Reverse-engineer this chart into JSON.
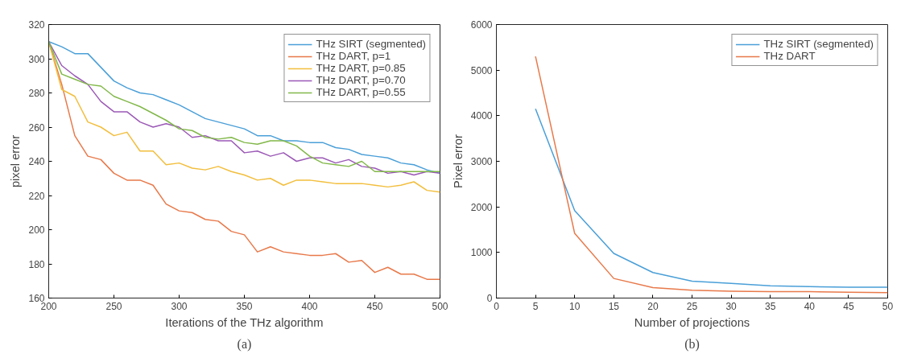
{
  "chart_data": [
    {
      "type": "line",
      "xlabel": "Iterations of the THz algorithm",
      "ylabel": "pixel error",
      "annotations": [
        "(a)"
      ],
      "x": [
        200,
        210,
        220,
        230,
        240,
        250,
        260,
        270,
        280,
        290,
        300,
        310,
        320,
        330,
        340,
        350,
        360,
        370,
        380,
        390,
        400,
        410,
        420,
        430,
        440,
        450,
        460,
        470,
        480,
        490,
        500
      ],
      "series": [
        {
          "name": "THz SIRT (segmented)",
          "color": "#4a9fd8",
          "values": [
            310,
            307,
            303,
            303,
            295,
            287,
            283,
            280,
            279,
            276,
            273,
            269,
            265,
            263,
            261,
            259,
            255,
            255,
            252,
            252,
            251,
            251,
            248,
            247,
            244,
            243,
            242,
            239,
            238,
            235,
            233
          ]
        },
        {
          "name": "THz DART, p=1",
          "color": "#e8794a",
          "values": [
            310,
            285,
            255,
            243,
            241,
            233,
            229,
            229,
            226,
            215,
            211,
            210,
            206,
            205,
            199,
            197,
            187,
            190,
            187,
            186,
            185,
            185,
            186,
            181,
            182,
            175,
            178,
            174,
            174,
            171,
            171
          ]
        },
        {
          "name": "THz DART, p=0.85",
          "color": "#f2be3d",
          "values": [
            310,
            282,
            278,
            263,
            260,
            255,
            257,
            246,
            246,
            238,
            239,
            236,
            235,
            237,
            234,
            232,
            229,
            230,
            226,
            229,
            229,
            228,
            227,
            227,
            227,
            226,
            225,
            226,
            228,
            223,
            222
          ]
        },
        {
          "name": "THz DART, p=0.70",
          "color": "#9b59b6",
          "values": [
            310,
            296,
            290,
            285,
            275,
            269,
            269,
            263,
            260,
            262,
            260,
            254,
            255,
            252,
            252,
            245,
            246,
            243,
            245,
            240,
            242,
            242,
            239,
            241,
            237,
            236,
            233,
            234,
            232,
            234,
            233
          ]
        },
        {
          "name": "THz DART, p=0.55",
          "color": "#82b84a",
          "values": [
            310,
            291,
            288,
            285,
            284,
            278,
            275,
            272,
            268,
            264,
            259,
            258,
            254,
            253,
            254,
            251,
            250,
            252,
            252,
            249,
            243,
            239,
            238,
            237,
            240,
            234,
            234,
            234,
            234,
            234,
            234
          ]
        }
      ],
      "xlim": [
        200,
        500
      ],
      "xticks": [
        200,
        250,
        300,
        350,
        400,
        450,
        500
      ],
      "ylim": [
        160,
        320
      ],
      "yticks": [
        160,
        180,
        200,
        220,
        240,
        260,
        280,
        300,
        320
      ],
      "grid": false,
      "legend": "top right"
    },
    {
      "type": "line",
      "xlabel": "Number of projections",
      "ylabel": "Pixel error",
      "annotations": [
        "(b)"
      ],
      "x": [
        5,
        10,
        15,
        20,
        25,
        30,
        35,
        40,
        45,
        50
      ],
      "series": [
        {
          "name": "THz SIRT (segmented)",
          "color": "#4a9fd8",
          "values": [
            4150,
            1920,
            980,
            560,
            370,
            320,
            270,
            250,
            240,
            240
          ]
        },
        {
          "name": "THz DART",
          "color": "#e8794a",
          "values": [
            5300,
            1420,
            430,
            230,
            170,
            150,
            140,
            140,
            130,
            120
          ]
        }
      ],
      "xlim": [
        0,
        50
      ],
      "xticks": [
        0,
        5,
        10,
        15,
        20,
        25,
        30,
        35,
        40,
        45,
        50
      ],
      "ylim": [
        0,
        6000
      ],
      "yticks": [
        0,
        1000,
        2000,
        3000,
        4000,
        5000,
        6000
      ],
      "grid": false,
      "legend": "top right"
    }
  ]
}
